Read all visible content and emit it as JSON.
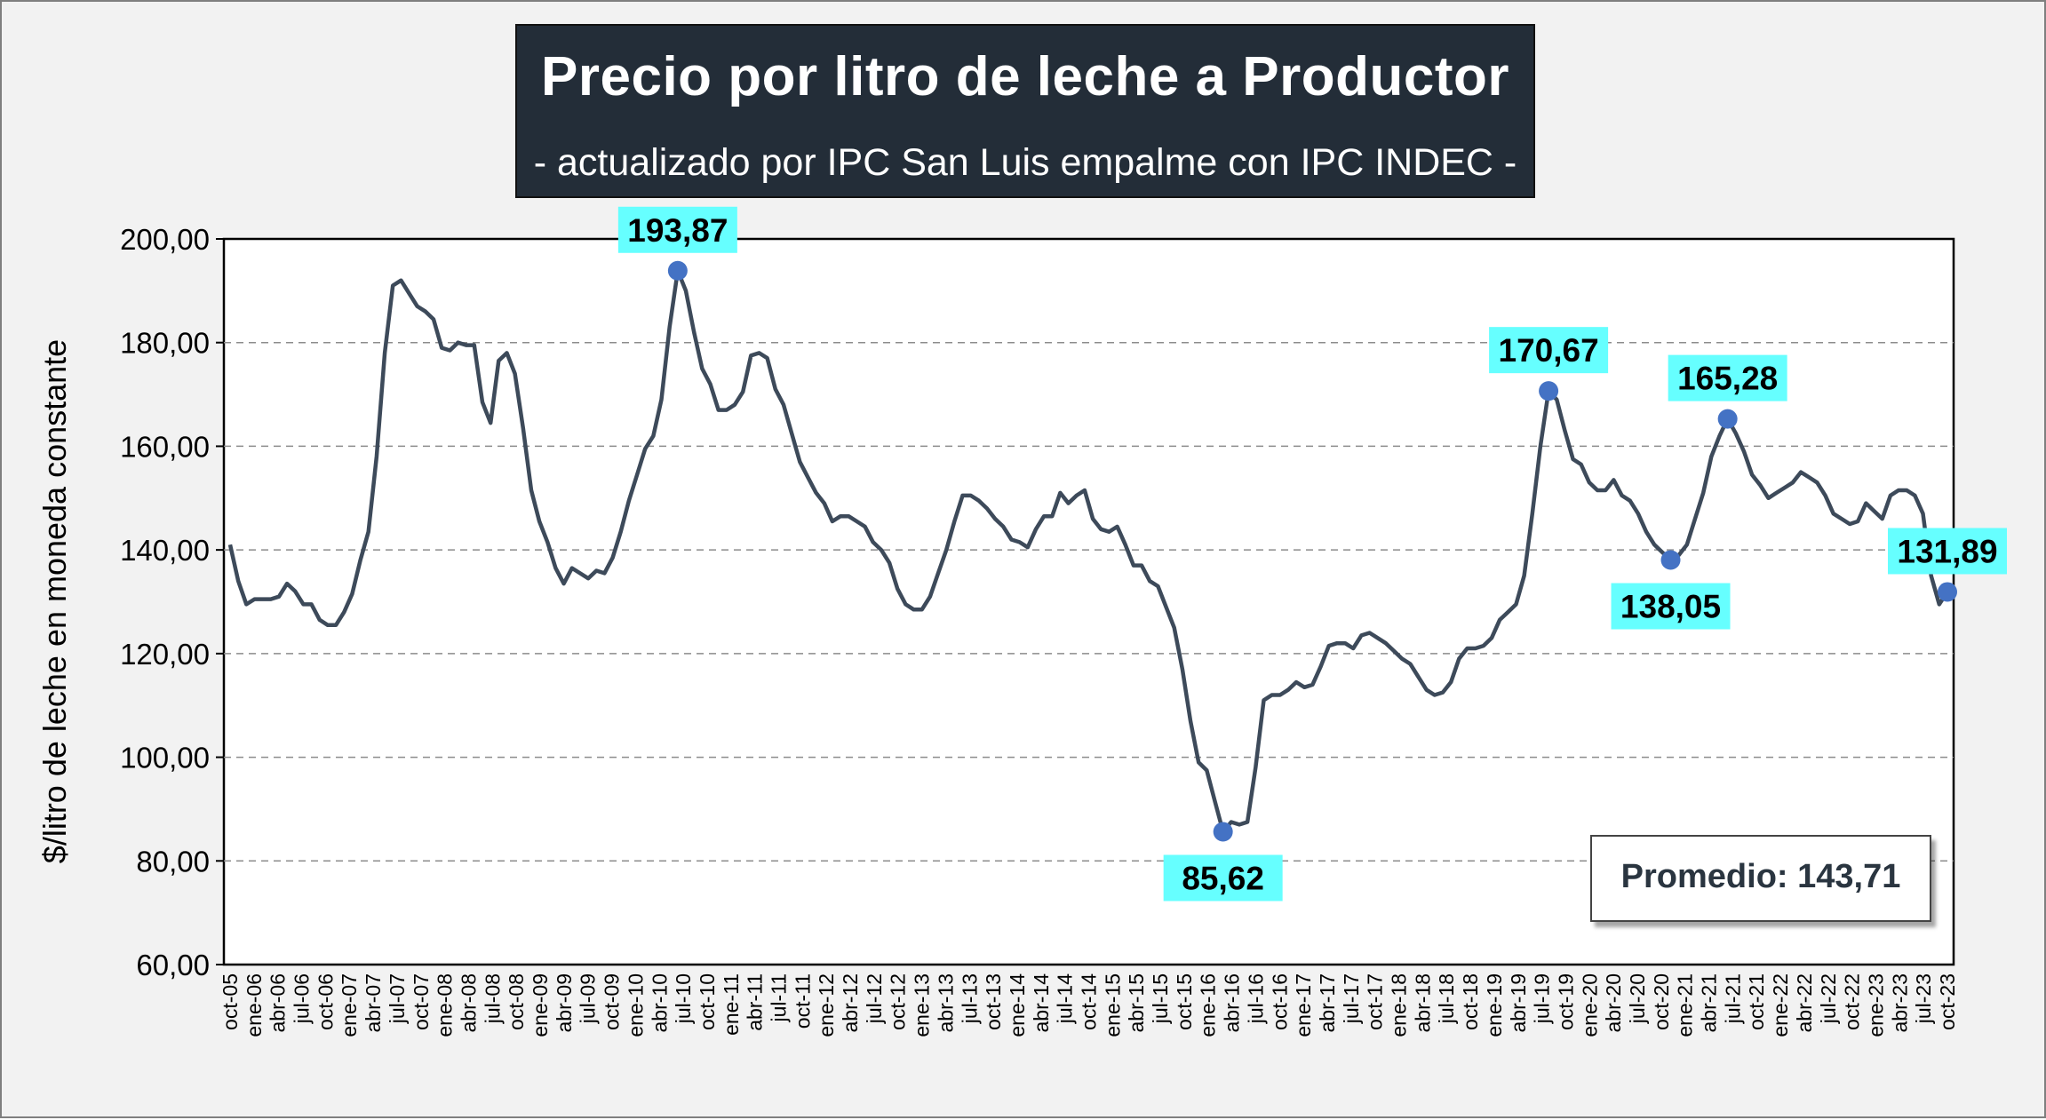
{
  "title": "Precio por litro de leche a Productor",
  "subtitle": "- actualizado por IPC San Luis empalme con IPC INDEC -",
  "average_label": "Promedio: 143,71",
  "colors": {
    "line": "#3d4a5a",
    "marker": "#4472c4",
    "callout": "#66ffff",
    "title_bg": "#232d38"
  },
  "chart_data": {
    "type": "line",
    "title": "Precio por litro de leche a Productor",
    "subtitle": "- actualizado por IPC San Luis empalme con IPC INDEC -",
    "xlabel": "",
    "ylabel": "$/litro de leche en moneda constante",
    "ylim": [
      60,
      200
    ],
    "yticks": [
      "60,00",
      "80,00",
      "100,00",
      "120,00",
      "140,00",
      "160,00",
      "180,00",
      "200,00"
    ],
    "grid": "horizontal-dashed",
    "x_ticks": [
      "oct-05",
      "ene-06",
      "abr-06",
      "jul-06",
      "oct-06",
      "ene-07",
      "abr-07",
      "jul-07",
      "oct-07",
      "ene-08",
      "abr-08",
      "jul-08",
      "oct-08",
      "ene-09",
      "abr-09",
      "jul-09",
      "oct-09",
      "ene-10",
      "abr-10",
      "jul-10",
      "oct-10",
      "ene-11",
      "abr-11",
      "jul-11",
      "oct-11",
      "ene-12",
      "abr-12",
      "jul-12",
      "oct-12",
      "ene-13",
      "abr-13",
      "jul-13",
      "oct-13",
      "ene-14",
      "abr-14",
      "jul-14",
      "oct-14",
      "ene-15",
      "abr-15",
      "jul-15",
      "oct-15",
      "ene-16",
      "abr-16",
      "jul-16",
      "oct-16",
      "ene-17",
      "abr-17",
      "jul-17",
      "oct-17",
      "ene-18",
      "abr-18",
      "jul-18",
      "oct-18",
      "ene-19",
      "abr-19",
      "jul-19",
      "oct-19",
      "ene-20",
      "abr-20",
      "jul-20",
      "oct-20",
      "ene-21",
      "abr-21",
      "jul-21",
      "oct-21",
      "ene-22",
      "abr-22",
      "jul-22",
      "oct-22",
      "ene-23",
      "abr-23",
      "jul-23",
      "oct-23"
    ],
    "series": [
      {
        "values": [
          141,
          134,
          129.5,
          130.5,
          130.5,
          130.5,
          131,
          133.5,
          132,
          129.5,
          129.5,
          126.5,
          125.5,
          125.5,
          128,
          131.5,
          138,
          143.5,
          158,
          178,
          191,
          192,
          189.5,
          187,
          186,
          184.5,
          179,
          178.5,
          180,
          179.5,
          179.5,
          168.5,
          164.5,
          176.5,
          178,
          174,
          163.5,
          151.5,
          145.5,
          141.5,
          136.5,
          133.5,
          136.5,
          135.5,
          134.5,
          136,
          135.5,
          138.5,
          143.5,
          149.5,
          154.5,
          159.5,
          162,
          169,
          183,
          193.87,
          190,
          182,
          175,
          172,
          167,
          167,
          168,
          170.5,
          177.5,
          178,
          177,
          171,
          168,
          162.5,
          157,
          154,
          151,
          149,
          145.5,
          146.5,
          146.5,
          145.5,
          144.5,
          141.5,
          140,
          137.5,
          132.5,
          129.5,
          128.5,
          128.5,
          131,
          135.5,
          140,
          145.5,
          150.5,
          150.5,
          149.5,
          148,
          146,
          144.5,
          142,
          141.5,
          140.5,
          144,
          146.5,
          146.5,
          151,
          149,
          150.5,
          151.5,
          146,
          144,
          143.5,
          144.5,
          141,
          137,
          137,
          134,
          133,
          129,
          125,
          117,
          107,
          99,
          97.5,
          91.5,
          85.62,
          87.5,
          87,
          87.5,
          98,
          111,
          112,
          112,
          113,
          114.5,
          113.5,
          114,
          117.5,
          121.5,
          122,
          122,
          121,
          123.5,
          124,
          123,
          122,
          120.5,
          119,
          118,
          115.5,
          113,
          112,
          112.5,
          114.5,
          119,
          121,
          121,
          121.5,
          123,
          126.5,
          128,
          129.5,
          135,
          147,
          160,
          170.67,
          169,
          163,
          157.5,
          156.5,
          153,
          151.5,
          151.5,
          153.5,
          150.5,
          149.5,
          147,
          143.5,
          141,
          139.5,
          138.05,
          139,
          141,
          146,
          151,
          158,
          162,
          165.28,
          162.5,
          159,
          154.5,
          152.5,
          150,
          151,
          152,
          153,
          155,
          154,
          153,
          150.5,
          147,
          146,
          145,
          145.5,
          149,
          147.5,
          146,
          150.5,
          151.5,
          151.5,
          150.5,
          147,
          135,
          129.5,
          131.89
        ]
      }
    ],
    "annotations": [
      {
        "label": "193,87",
        "value": 193.87,
        "date": "may-10"
      },
      {
        "label": "85,62",
        "value": 85.62,
        "date": "dic-15"
      },
      {
        "label": "170,67",
        "value": 170.67,
        "date": "jun-19"
      },
      {
        "label": "138,05",
        "value": 138.05,
        "date": "oct-20"
      },
      {
        "label": "165,28",
        "value": 165.28,
        "date": "jul-21"
      },
      {
        "label": "131,89",
        "value": 131.89,
        "date": "oct-23"
      }
    ],
    "average": 143.71
  }
}
